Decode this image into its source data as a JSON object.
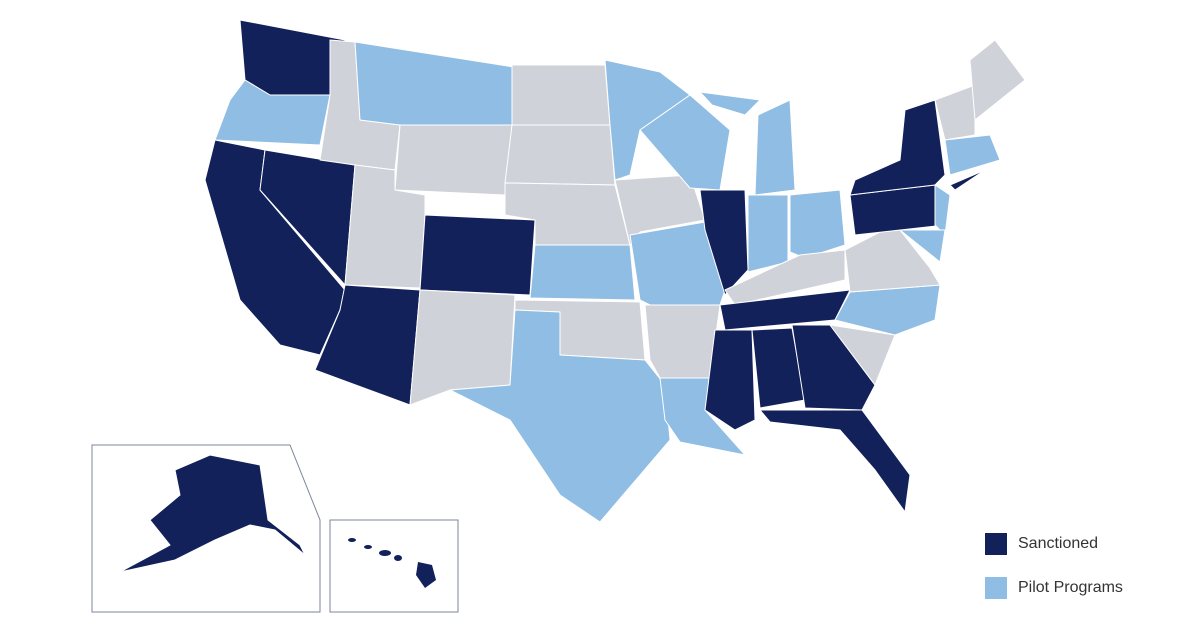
{
  "legend": {
    "items": [
      {
        "label": "Sanctioned",
        "color": "#13215a"
      },
      {
        "label": "Pilot Programs",
        "color": "#8fbde3"
      }
    ]
  }
}
